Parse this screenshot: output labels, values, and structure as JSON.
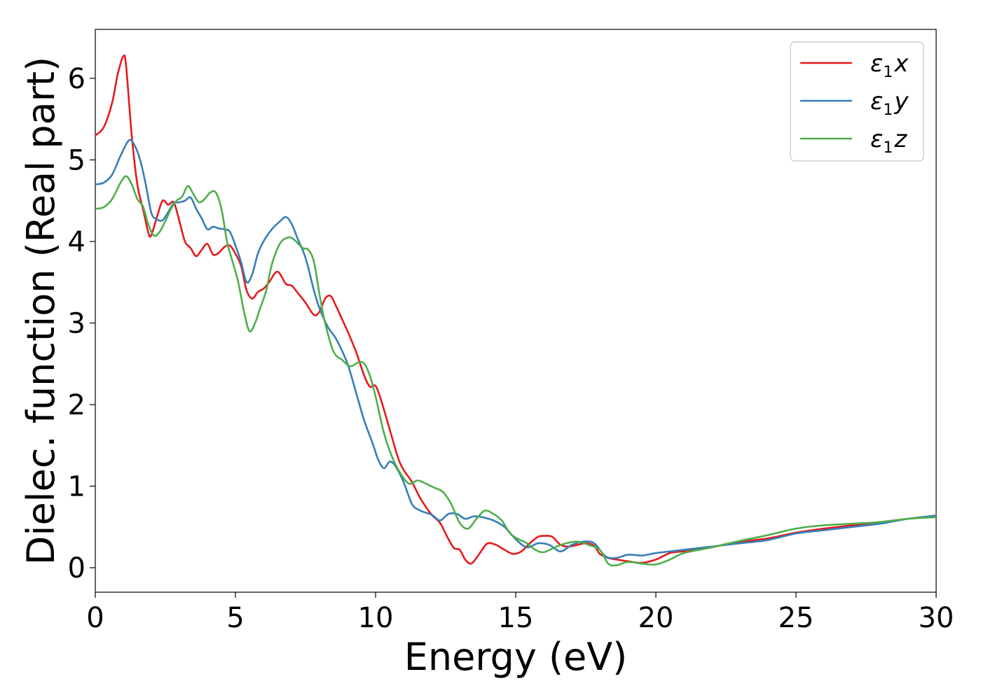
{
  "chart_data": {
    "type": "line",
    "title": "",
    "xlabel": "Energy (eV)",
    "ylabel": "Dielec. function (Real part)",
    "xlim": [
      0,
      30
    ],
    "ylim": [
      -0.3,
      6.6
    ],
    "xticks": [
      0,
      5,
      10,
      15,
      20,
      25,
      30
    ],
    "yticks": [
      0,
      1,
      2,
      3,
      4,
      5,
      6
    ],
    "grid": false,
    "legend_position": "top-right",
    "series": [
      {
        "name": "ε1x",
        "legend": {
          "base": "ε",
          "sub": "1",
          "suffix": "x"
        },
        "color": "#e41a1c",
        "x": [
          0,
          0.3,
          0.6,
          0.8,
          1.0,
          1.1,
          1.3,
          1.5,
          1.7,
          1.9,
          2.0,
          2.2,
          2.4,
          2.6,
          2.8,
          3.0,
          3.2,
          3.4,
          3.6,
          3.8,
          4.0,
          4.2,
          4.4,
          4.6,
          4.8,
          5.0,
          5.2,
          5.4,
          5.6,
          5.8,
          6.0,
          6.2,
          6.5,
          6.8,
          7.0,
          7.2,
          7.5,
          7.8,
          8.0,
          8.2,
          8.4,
          8.6,
          8.8,
          9.0,
          9.3,
          9.6,
          9.8,
          10.0,
          10.2,
          10.5,
          10.8,
          11.0,
          11.3,
          11.6,
          12.0,
          12.3,
          12.6,
          12.8,
          13.0,
          13.2,
          13.4,
          13.6,
          13.8,
          14.0,
          14.3,
          14.6,
          14.9,
          15.2,
          15.5,
          15.8,
          16.0,
          16.3,
          16.6,
          16.9,
          17.2,
          17.5,
          17.8,
          18.0,
          18.3,
          18.6,
          19.0,
          19.5,
          20.0,
          20.5,
          21.0,
          21.5,
          22.0,
          22.5,
          23.0,
          24.0,
          25.0,
          26.0,
          27.0,
          28.0,
          29.0,
          30.0
        ],
        "y": [
          5.3,
          5.4,
          5.7,
          6.05,
          6.27,
          6.15,
          5.3,
          4.7,
          4.4,
          4.1,
          4.08,
          4.3,
          4.5,
          4.45,
          4.48,
          4.25,
          4.0,
          3.92,
          3.82,
          3.9,
          3.97,
          3.84,
          3.86,
          3.93,
          3.95,
          3.85,
          3.7,
          3.4,
          3.3,
          3.38,
          3.42,
          3.5,
          3.63,
          3.48,
          3.46,
          3.38,
          3.25,
          3.1,
          3.14,
          3.3,
          3.33,
          3.2,
          3.05,
          2.9,
          2.65,
          2.35,
          2.22,
          2.23,
          2.05,
          1.7,
          1.35,
          1.2,
          1.05,
          0.85,
          0.65,
          0.55,
          0.35,
          0.24,
          0.22,
          0.1,
          0.05,
          0.12,
          0.22,
          0.3,
          0.28,
          0.22,
          0.17,
          0.2,
          0.3,
          0.38,
          0.39,
          0.38,
          0.28,
          0.26,
          0.28,
          0.3,
          0.27,
          0.17,
          0.12,
          0.1,
          0.08,
          0.06,
          0.1,
          0.18,
          0.2,
          0.22,
          0.25,
          0.29,
          0.32,
          0.36,
          0.43,
          0.48,
          0.52,
          0.56,
          0.6,
          0.63
        ]
      },
      {
        "name": "ε1y",
        "legend": {
          "base": "ε",
          "sub": "1",
          "suffix": "y"
        },
        "color": "#377eb8",
        "x": [
          0,
          0.3,
          0.6,
          0.9,
          1.2,
          1.4,
          1.6,
          1.8,
          2.0,
          2.2,
          2.4,
          2.6,
          2.8,
          3.0,
          3.2,
          3.4,
          3.6,
          3.8,
          4.0,
          4.2,
          4.4,
          4.6,
          4.8,
          5.0,
          5.2,
          5.4,
          5.6,
          5.8,
          6.0,
          6.3,
          6.6,
          6.8,
          7.0,
          7.2,
          7.5,
          7.8,
          8.0,
          8.3,
          8.6,
          9.0,
          9.3,
          9.6,
          9.9,
          10.1,
          10.3,
          10.5,
          10.7,
          11.0,
          11.3,
          11.6,
          12.0,
          12.3,
          12.6,
          12.9,
          13.2,
          13.5,
          13.8,
          14.2,
          14.6,
          15.0,
          15.4,
          15.8,
          16.2,
          16.6,
          17.0,
          17.4,
          17.8,
          18.2,
          18.6,
          19.0,
          19.5,
          20.0,
          20.5,
          21.0,
          22.0,
          23.0,
          24.0,
          25.0,
          26.0,
          27.0,
          28.0,
          29.0,
          30.0
        ],
        "y": [
          4.7,
          4.72,
          4.82,
          5.05,
          5.24,
          5.18,
          5.0,
          4.7,
          4.35,
          4.27,
          4.26,
          4.36,
          4.47,
          4.48,
          4.5,
          4.54,
          4.4,
          4.28,
          4.15,
          4.18,
          4.16,
          4.15,
          4.12,
          3.95,
          3.75,
          3.5,
          3.6,
          3.85,
          4.0,
          4.15,
          4.25,
          4.3,
          4.22,
          4.05,
          3.8,
          3.4,
          3.18,
          2.95,
          2.8,
          2.5,
          2.15,
          1.8,
          1.52,
          1.32,
          1.22,
          1.3,
          1.25,
          1.05,
          0.78,
          0.7,
          0.65,
          0.58,
          0.66,
          0.66,
          0.6,
          0.63,
          0.62,
          0.58,
          0.5,
          0.35,
          0.25,
          0.3,
          0.28,
          0.2,
          0.28,
          0.32,
          0.3,
          0.14,
          0.12,
          0.16,
          0.15,
          0.18,
          0.2,
          0.22,
          0.26,
          0.3,
          0.34,
          0.42,
          0.46,
          0.5,
          0.54,
          0.6,
          0.64
        ]
      },
      {
        "name": "ε1z",
        "legend": {
          "base": "ε",
          "sub": "1",
          "suffix": "z"
        },
        "color": "#4daf4a",
        "x": [
          0,
          0.3,
          0.6,
          0.9,
          1.1,
          1.3,
          1.5,
          1.7,
          1.9,
          2.1,
          2.3,
          2.5,
          2.7,
          2.9,
          3.1,
          3.3,
          3.5,
          3.7,
          3.9,
          4.1,
          4.3,
          4.5,
          4.7,
          4.9,
          5.1,
          5.3,
          5.5,
          5.7,
          5.9,
          6.1,
          6.3,
          6.6,
          6.9,
          7.1,
          7.4,
          7.6,
          7.8,
          8.0,
          8.2,
          8.5,
          8.8,
          9.1,
          9.4,
          9.6,
          9.8,
          10.0,
          10.3,
          10.6,
          10.9,
          11.2,
          11.5,
          11.8,
          12.1,
          12.4,
          12.7,
          13.0,
          13.3,
          13.6,
          13.9,
          14.2,
          14.5,
          14.8,
          15.1,
          15.4,
          15.7,
          16.0,
          16.4,
          16.8,
          17.2,
          17.6,
          18.0,
          18.3,
          18.6,
          19.0,
          19.5,
          20.0,
          20.5,
          21.0,
          22.0,
          23.0,
          24.0,
          25.0,
          26.0,
          27.0,
          28.0,
          29.0,
          30.0
        ],
        "y": [
          4.4,
          4.42,
          4.52,
          4.72,
          4.8,
          4.7,
          4.52,
          4.43,
          4.2,
          4.07,
          4.12,
          4.25,
          4.4,
          4.5,
          4.55,
          4.68,
          4.58,
          4.48,
          4.52,
          4.6,
          4.6,
          4.4,
          4.0,
          3.75,
          3.5,
          3.15,
          2.9,
          3.0,
          3.2,
          3.4,
          3.72,
          3.98,
          4.05,
          4.02,
          3.92,
          3.9,
          3.75,
          3.35,
          3.0,
          2.65,
          2.55,
          2.47,
          2.52,
          2.5,
          2.35,
          2.1,
          1.65,
          1.35,
          1.15,
          1.03,
          1.07,
          1.03,
          0.98,
          0.93,
          0.78,
          0.55,
          0.48,
          0.6,
          0.7,
          0.66,
          0.58,
          0.42,
          0.35,
          0.3,
          0.22,
          0.19,
          0.25,
          0.3,
          0.32,
          0.28,
          0.22,
          0.05,
          0.03,
          0.07,
          0.05,
          0.04,
          0.1,
          0.18,
          0.25,
          0.33,
          0.4,
          0.48,
          0.52,
          0.54,
          0.56,
          0.6,
          0.62
        ]
      }
    ]
  }
}
